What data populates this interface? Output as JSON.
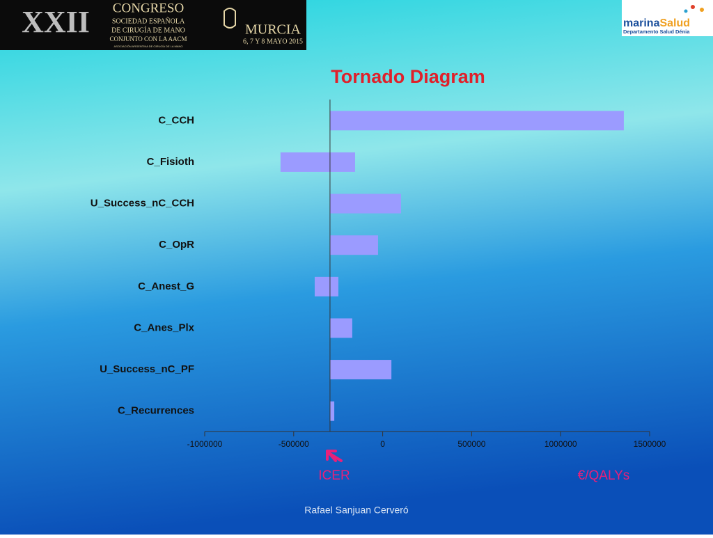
{
  "header": {
    "edition": "XXII",
    "congress": "CONGRESO",
    "line1": "SOCIEDAD ESPAÑOLA",
    "line2": "DE CIRUGÍA DE MANO",
    "line3": "CONJUNTO CON LA AACM",
    "line4": "ASOCIACIÓN ARGENTINA DE CIRUGÍA DE LA MANO",
    "city": "MURCIA",
    "dates": "6, 7 Y 8 MAYO 2015",
    "brand_a": "marina",
    "brand_b": "Salud",
    "department": "Departamento Salud Dénia"
  },
  "chart_data": {
    "type": "tornado",
    "title": "Tornado Diagram",
    "categories": [
      "C_CCH",
      "C_Fisioth",
      "U_Success_nC_CCH",
      "C_OpR",
      "C_Anest_G",
      "C_Anes_Plx",
      "U_Success_nC_PF",
      "C_Recurrences"
    ],
    "ranges": [
      [
        -296000,
        1355000
      ],
      [
        -574000,
        -155000
      ],
      [
        -296000,
        103000
      ],
      [
        -296000,
        -26000
      ],
      [
        -382000,
        -249000
      ],
      [
        -296000,
        -171000
      ],
      [
        -296000,
        49000
      ],
      [
        -296000,
        -272000
      ]
    ],
    "base_value": -296000,
    "color": "#9b9bff",
    "xlim": [
      -1000000,
      1500000
    ],
    "xticks": [
      -1000000,
      -500000,
      0,
      500000,
      1000000,
      1500000
    ]
  },
  "annotations": {
    "left": "ICER",
    "right": "€/QALYs"
  },
  "footer": "Rafael Sanjuan Cerveró"
}
